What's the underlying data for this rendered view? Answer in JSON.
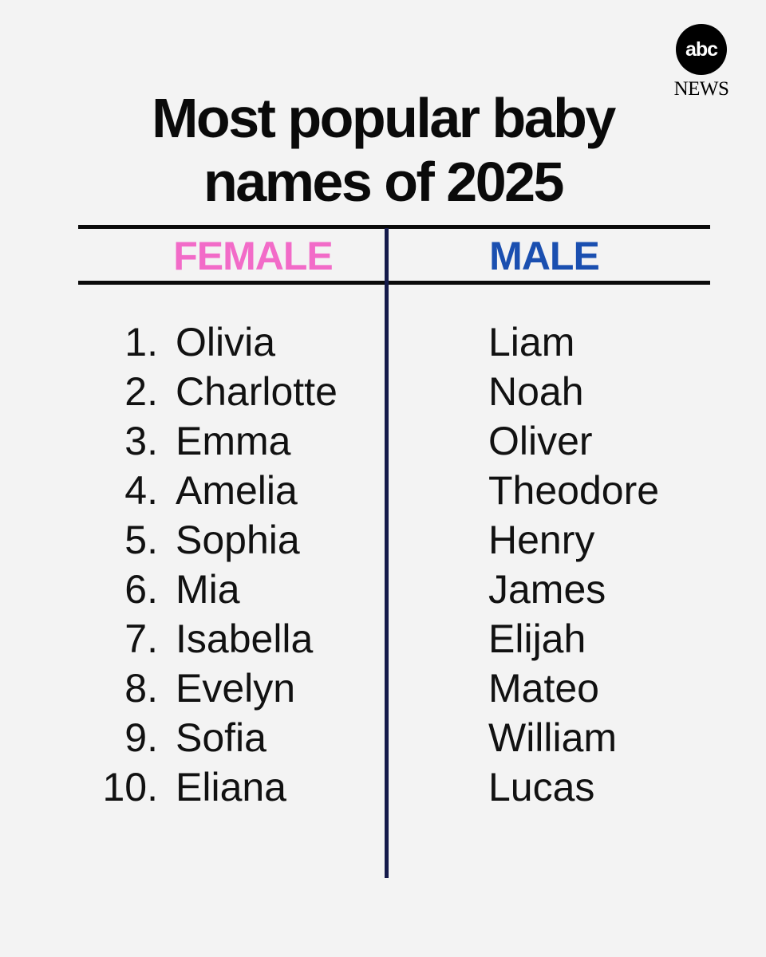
{
  "brand": {
    "logo_text": "abc",
    "logo_sub": "NEWS"
  },
  "title": {
    "line1": "Most popular baby",
    "line2": "names of 2025"
  },
  "columns": {
    "female": "FEMALE",
    "male": "MALE"
  },
  "colors": {
    "female_accent": "#f26bc8",
    "male_accent": "#1a4fb0",
    "divider": "#141a4a",
    "background": "#f3f3f3"
  },
  "rows": [
    {
      "rank": "1.",
      "female": "Olivia",
      "male": "Liam"
    },
    {
      "rank": "2.",
      "female": "Charlotte",
      "male": "Noah"
    },
    {
      "rank": "3.",
      "female": "Emma",
      "male": "Oliver"
    },
    {
      "rank": "4.",
      "female": "Amelia",
      "male": "Theodore"
    },
    {
      "rank": "5.",
      "female": "Sophia",
      "male": "Henry"
    },
    {
      "rank": "6.",
      "female": "Mia",
      "male": "James"
    },
    {
      "rank": "7.",
      "female": "Isabella",
      "male": "Elijah"
    },
    {
      "rank": "8.",
      "female": "Evelyn",
      "male": "Mateo"
    },
    {
      "rank": "9.",
      "female": "Sofia",
      "male": "William"
    },
    {
      "rank": "10.",
      "female": "Eliana",
      "male": "Lucas"
    }
  ]
}
